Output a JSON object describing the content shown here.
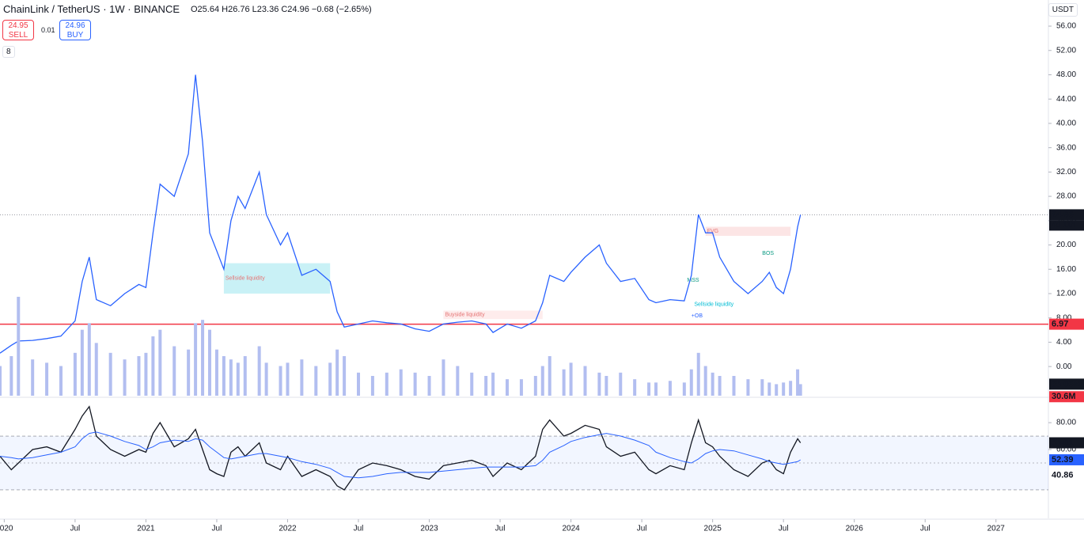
{
  "header": {
    "symbol": "ChainLink / TetherUS · 1W · BINANCE",
    "ohlc": "O25.64 H26.76 L23.36 C24.96 −0.68 (−2.65%)",
    "sell_price": "24.95",
    "sell": "SELL",
    "spread": "0.01",
    "buy_price": "24.96",
    "buy": "BUY",
    "indicators": "8",
    "currency": "USDT"
  },
  "chart_data": [
    {
      "type": "line",
      "color": "#2962ff",
      "x": [
        2019.97,
        2020.05,
        2020.1,
        2020.2,
        2020.3,
        2020.4,
        2020.5,
        2020.55,
        2020.6,
        2020.65,
        2020.75,
        2020.85,
        2020.95,
        2021.0,
        2021.05,
        2021.1,
        2021.2,
        2021.3,
        2021.35,
        2021.4,
        2021.45,
        2021.5,
        2021.55,
        2021.6,
        2021.65,
        2021.7,
        2021.8,
        2021.85,
        2021.95,
        2022.0,
        2022.1,
        2022.2,
        2022.3,
        2022.35,
        2022.4,
        2022.5,
        2022.6,
        2022.7,
        2022.8,
        2022.9,
        2023.0,
        2023.1,
        2023.2,
        2023.3,
        2023.4,
        2023.45,
        2023.55,
        2023.65,
        2023.75,
        2023.8,
        2023.85,
        2023.95,
        2024.0,
        2024.1,
        2024.2,
        2024.25,
        2024.35,
        2024.45,
        2024.55,
        2024.6,
        2024.7,
        2024.8,
        2024.85,
        2024.9,
        2024.95,
        2025.0,
        2025.05,
        2025.15,
        2025.25,
        2025.35,
        2025.4,
        2025.45,
        2025.5,
        2025.55,
        2025.6,
        2025.62
      ],
      "values": [
        2.2,
        3.5,
        4.2,
        4.3,
        4.6,
        5.0,
        7.5,
        14,
        18,
        11,
        10,
        12,
        13.5,
        13,
        22,
        30,
        28,
        35,
        48,
        37,
        22,
        19,
        16,
        24,
        28,
        26,
        32,
        25,
        20,
        22,
        15,
        16,
        14,
        9,
        6.5,
        7,
        7.5,
        7.2,
        7,
        6.2,
        5.8,
        7,
        7.3,
        7.5,
        7,
        5.6,
        7,
        6.3,
        7.5,
        10.5,
        15,
        14,
        15.5,
        18,
        20,
        17,
        14,
        14.5,
        11,
        10.5,
        11,
        10.8,
        15,
        25,
        22,
        22,
        18,
        14,
        12,
        14,
        15.5,
        13,
        12,
        16,
        23,
        24.96
      ],
      "xlim": [
        2019.97,
        2027.37
      ],
      "xticks": [
        2020,
        {
          "value": 2020.5,
          "label": "Jul"
        },
        2021,
        {
          "value": 2021.5,
          "label": "Jul"
        },
        2022,
        {
          "value": 2022.5,
          "label": "Jul"
        },
        2023,
        {
          "value": 2023.5,
          "label": "Jul"
        },
        2024,
        {
          "value": 2024.5,
          "label": "Jul"
        },
        2025,
        {
          "value": 2025.5,
          "label": "Jul"
        },
        2026,
        {
          "value": 2026.5,
          "label": "Jul"
        },
        2027
      ],
      "ylim": [
        -4.8,
        60.3
      ],
      "yticks": [
        {
          "value": 0,
          "label": "0.00"
        },
        {
          "value": 4,
          "label": "4.00"
        },
        {
          "value": 8,
          "label": "8.00"
        },
        {
          "value": 12,
          "label": "12.00"
        },
        {
          "value": 16,
          "label": "16.00"
        },
        {
          "value": 20,
          "label": "20.00"
        },
        {
          "value": 24,
          "label": "24.00"
        },
        {
          "value": 28,
          "label": "28.00"
        },
        {
          "value": 32,
          "label": "32.00"
        },
        {
          "value": 36,
          "label": "36.00"
        },
        {
          "value": 40,
          "label": "40.00"
        },
        {
          "value": 44,
          "label": "44.00"
        },
        {
          "value": 48,
          "label": "48.00"
        },
        {
          "value": 52,
          "label": "52.00"
        },
        {
          "value": 56,
          "label": "56.00"
        }
      ],
      "last_price": {
        "value": 24.96,
        "label": "24.96"
      },
      "countdown": "4d 11h",
      "level": {
        "value": 6.97,
        "label": "6.97",
        "color": "#f23645"
      },
      "zones": [
        {
          "text": "Sellside liquidity",
          "x": [
            2021.55,
            2022.3
          ],
          "y": [
            12,
            17
          ],
          "color": "#b2ebf2"
        },
        {
          "text": "Buyside liquidity",
          "x": [
            2023.1,
            2023.8
          ],
          "y": [
            7.8,
            9.2
          ],
          "color": "#fde4e4"
        },
        {
          "text": "FVG",
          "x": [
            2024.95,
            2025.55
          ],
          "y": [
            21.5,
            23
          ],
          "color": "#fbdada"
        }
      ],
      "annotations": [
        {
          "text": "Sellside liquidity",
          "x": 2024.87,
          "y": 10.2,
          "color": "#00bcd4"
        },
        {
          "text": "+OB",
          "x": 2024.85,
          "y": 8.3,
          "color": "#2962ff"
        },
        {
          "text": "MSS",
          "x": 2024.82,
          "y": 14.2,
          "color": "#089981"
        },
        {
          "text": "BOS",
          "x": 2025.35,
          "y": 18.6,
          "color": "#089981"
        }
      ]
    },
    {
      "type": "bar",
      "color": "#b2bef0",
      "x": [
        2019.97,
        2020.05,
        2020.1,
        2020.2,
        2020.3,
        2020.4,
        2020.5,
        2020.55,
        2020.6,
        2020.65,
        2020.75,
        2020.85,
        2020.95,
        2021.0,
        2021.05,
        2021.1,
        2021.2,
        2021.3,
        2021.35,
        2021.4,
        2021.45,
        2021.5,
        2021.55,
        2021.6,
        2021.65,
        2021.7,
        2021.8,
        2021.85,
        2021.95,
        2022.0,
        2022.1,
        2022.2,
        2022.3,
        2022.35,
        2022.4,
        2022.5,
        2022.6,
        2022.7,
        2022.8,
        2022.9,
        2023.0,
        2023.1,
        2023.2,
        2023.3,
        2023.4,
        2023.45,
        2023.55,
        2023.65,
        2023.75,
        2023.8,
        2023.85,
        2023.95,
        2024.0,
        2024.1,
        2024.2,
        2024.25,
        2024.35,
        2024.45,
        2024.55,
        2024.6,
        2024.7,
        2024.8,
        2024.85,
        2024.9,
        2024.95,
        2025.0,
        2025.05,
        2025.15,
        2025.25,
        2025.35,
        2025.4,
        2025.45,
        2025.5,
        2025.55,
        2025.6,
        2025.62
      ],
      "values": [
        90,
        120,
        300,
        110,
        100,
        90,
        130,
        200,
        220,
        160,
        130,
        110,
        120,
        130,
        180,
        200,
        150,
        140,
        220,
        230,
        200,
        140,
        120,
        110,
        100,
        120,
        150,
        100,
        90,
        100,
        110,
        90,
        100,
        140,
        120,
        70,
        60,
        70,
        80,
        70,
        60,
        110,
        90,
        70,
        60,
        70,
        50,
        50,
        60,
        90,
        120,
        80,
        100,
        90,
        70,
        60,
        70,
        50,
        40,
        40,
        45,
        40,
        80,
        130,
        90,
        70,
        60,
        60,
        50,
        50,
        40,
        35,
        40,
        45,
        80,
        35.06
      ],
      "ylim": [
        0,
        1200
      ],
      "last": {
        "value": 35.06,
        "label": "35.06M",
        "color": "#131722"
      },
      "ma_last": {
        "value": 30.6,
        "label": "30.6M",
        "color": "#f23645"
      }
    },
    {
      "type": "line",
      "color": "#131722",
      "ma_color": "#2962ff",
      "x": [
        2019.97,
        2020.05,
        2020.1,
        2020.2,
        2020.3,
        2020.4,
        2020.5,
        2020.55,
        2020.6,
        2020.65,
        2020.75,
        2020.85,
        2020.95,
        2021.0,
        2021.05,
        2021.1,
        2021.2,
        2021.3,
        2021.35,
        2021.4,
        2021.45,
        2021.5,
        2021.55,
        2021.6,
        2021.65,
        2021.7,
        2021.8,
        2021.85,
        2021.95,
        2022.0,
        2022.1,
        2022.2,
        2022.3,
        2022.35,
        2022.4,
        2022.5,
        2022.6,
        2022.7,
        2022.8,
        2022.9,
        2023.0,
        2023.1,
        2023.2,
        2023.3,
        2023.4,
        2023.45,
        2023.55,
        2023.65,
        2023.75,
        2023.8,
        2023.85,
        2023.95,
        2024.0,
        2024.1,
        2024.2,
        2024.25,
        2024.35,
        2024.45,
        2024.55,
        2024.6,
        2024.7,
        2024.8,
        2024.85,
        2024.9,
        2024.95,
        2025.0,
        2025.05,
        2025.15,
        2025.25,
        2025.35,
        2025.4,
        2025.45,
        2025.5,
        2025.55,
        2025.6,
        2025.62
      ],
      "values": [
        55,
        45,
        50,
        60,
        62,
        58,
        75,
        85,
        92,
        70,
        60,
        55,
        60,
        58,
        72,
        80,
        62,
        68,
        75,
        60,
        45,
        42,
        40,
        58,
        62,
        55,
        65,
        50,
        45,
        55,
        40,
        45,
        40,
        33,
        30,
        45,
        50,
        48,
        45,
        40,
        38,
        48,
        50,
        52,
        48,
        40,
        50,
        45,
        55,
        75,
        82,
        70,
        72,
        78,
        75,
        62,
        55,
        58,
        45,
        42,
        48,
        45,
        65,
        82,
        65,
        62,
        55,
        45,
        40,
        50,
        52,
        45,
        42,
        58,
        68,
        65.01
      ],
      "ma_values": [
        55,
        54,
        53,
        54,
        56,
        58,
        62,
        68,
        72,
        73,
        70,
        66,
        63,
        60,
        62,
        65,
        67,
        66,
        68,
        67,
        62,
        58,
        54,
        53,
        54,
        55,
        57,
        57,
        55,
        54,
        51,
        49,
        46,
        43,
        40,
        39,
        40,
        42,
        43,
        43,
        43,
        44,
        45,
        46,
        47,
        47,
        47,
        47,
        48,
        52,
        58,
        63,
        66,
        69,
        71,
        72,
        70,
        67,
        63,
        58,
        54,
        51,
        50,
        53,
        57,
        59,
        60,
        59,
        56,
        53,
        51,
        50,
        49,
        50,
        51,
        52.39
      ],
      "ylim": [
        8.8,
        97.1
      ],
      "yticks": [
        {
          "value": 80,
          "label": "80.00"
        },
        {
          "value": 60,
          "label": "60.00"
        }
      ],
      "band": [
        30,
        70
      ],
      "midline": 50,
      "price_labels": [
        {
          "value": 65.01,
          "label": "65.01",
          "color": "#131722"
        },
        {
          "value": 52.47,
          "label": "52.47",
          "color": "#ffffff"
        },
        {
          "value": 52.39,
          "label": "52.39",
          "color": "#2962ff"
        },
        {
          "value": 40.86,
          "label": "40.86",
          "color": "#ffffff"
        }
      ]
    }
  ]
}
